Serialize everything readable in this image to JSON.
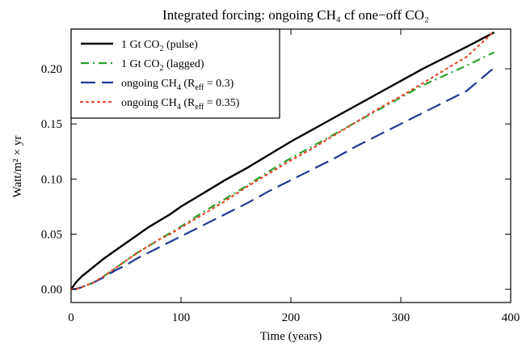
{
  "chart_data": {
    "type": "line",
    "title": "Integrated forcing: ongoing CH₄ cf one−off CO₂",
    "xlabel": "Time (years)",
    "ylabel": "Watt/m² × yr",
    "xlim": [
      0,
      400
    ],
    "ylim": [
      -0.012,
      0.236
    ],
    "xticks": [
      0,
      100,
      200,
      300,
      400
    ],
    "yticks": [
      0.0,
      0.05,
      0.1,
      0.15,
      0.2
    ],
    "grid": false,
    "legend_position": "top-left",
    "x": [
      0,
      5,
      10,
      20,
      30,
      40,
      50,
      60,
      70,
      80,
      90,
      100,
      120,
      140,
      160,
      180,
      200,
      220,
      240,
      260,
      280,
      300,
      320,
      340,
      360,
      385
    ],
    "series": [
      {
        "name": "1 Gt CO₂ (pulse)",
        "color": "#000000",
        "style": "solid",
        "values": [
          0,
          0.007,
          0.012,
          0.02,
          0.028,
          0.035,
          0.042,
          0.049,
          0.056,
          0.062,
          0.068,
          0.075,
          0.087,
          0.099,
          0.11,
          0.122,
          0.134,
          0.145,
          0.156,
          0.167,
          0.178,
          0.189,
          0.2,
          0.21,
          0.22,
          0.233
        ]
      },
      {
        "name": "1 Gt CO₂ (lagged)",
        "color": "#2ca02c",
        "style": "dashdot",
        "values": [
          0,
          0.0005,
          0.002,
          0.006,
          0.012,
          0.019,
          0.026,
          0.033,
          0.039,
          0.045,
          0.051,
          0.057,
          0.07,
          0.082,
          0.094,
          0.107,
          0.119,
          0.13,
          0.141,
          0.152,
          0.163,
          0.174,
          0.185,
          0.194,
          0.203,
          0.215
        ]
      },
      {
        "name": "ongoing CH₄ (R_eff = 0.3)",
        "color": "#1f3a93",
        "style": "dashed",
        "values": [
          0,
          0.0005,
          0.002,
          0.006,
          0.011,
          0.017,
          0.022,
          0.028,
          0.033,
          0.038,
          0.043,
          0.048,
          0.058,
          0.068,
          0.078,
          0.089,
          0.099,
          0.109,
          0.119,
          0.13,
          0.14,
          0.15,
          0.16,
          0.17,
          0.18,
          0.201
        ]
      },
      {
        "name": "ongoing CH₄ (R_eff = 0.35)",
        "color": "#e8492e",
        "style": "dotted",
        "values": [
          0,
          0.0005,
          0.002,
          0.006,
          0.012,
          0.019,
          0.026,
          0.033,
          0.039,
          0.045,
          0.05,
          0.056,
          0.068,
          0.08,
          0.093,
          0.105,
          0.117,
          0.128,
          0.14,
          0.152,
          0.164,
          0.175,
          0.187,
          0.199,
          0.211,
          0.234
        ]
      }
    ],
    "legend_entries": [
      {
        "text": "1 Gt CO",
        "sub": "2",
        "tail": " (pulse)"
      },
      {
        "text": "1 Gt CO",
        "sub": "2",
        "tail": " (lagged)"
      },
      {
        "text": "ongoing CH",
        "sub": "4",
        "mid": " (R",
        "sub2": "eff",
        "tail": " = 0.3)"
      },
      {
        "text": "ongoing CH",
        "sub": "4",
        "mid": " (R",
        "sub2": "eff",
        "tail": " = 0.35)"
      }
    ]
  }
}
